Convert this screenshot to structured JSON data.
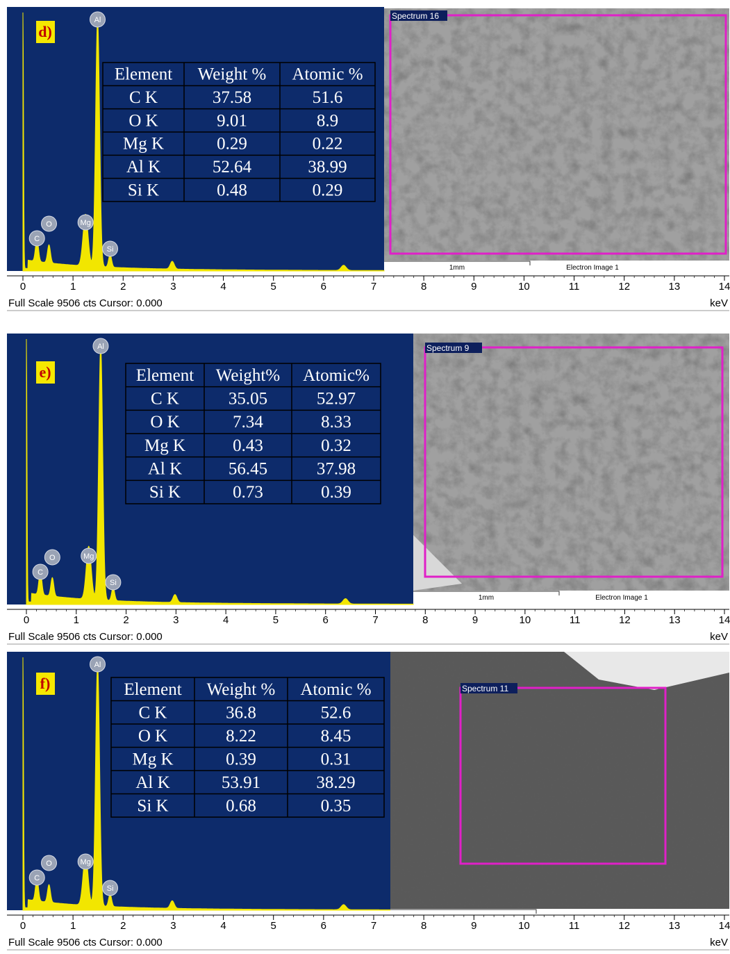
{
  "panels": [
    {
      "label": "d)",
      "peaks": [
        "C",
        "O",
        "Mg",
        "Al",
        "Si"
      ],
      "table": {
        "header": [
          "Element",
          "Weight %",
          "Atomic %"
        ],
        "rows": [
          [
            "C K",
            37.58,
            51.6
          ],
          [
            "O K",
            9.01,
            8.9
          ],
          [
            "Mg K",
            0.29,
            0.22
          ],
          [
            "Al K",
            52.64,
            38.99
          ],
          [
            "Si K",
            0.48,
            0.29
          ]
        ]
      },
      "image": {
        "spectrum": "Spectrum 16",
        "scale": "1mm",
        "caption": "Electron Image 1"
      },
      "axis": {
        "xlim": [
          0,
          14
        ],
        "xticks": [
          0,
          1,
          2,
          3,
          4,
          5,
          6,
          7,
          8,
          9,
          10,
          11,
          12,
          13,
          14
        ],
        "unit": "keV"
      },
      "footer": "Full Scale 9506 cts Cursor: 0.000"
    },
    {
      "label": "e)",
      "peaks": [
        "C",
        "O",
        "Mg",
        "Al",
        "Si"
      ],
      "table": {
        "header": [
          "Element",
          "Weight%",
          "Atomic%"
        ],
        "rows": [
          [
            "C K",
            35.05,
            52.97
          ],
          [
            "O K",
            7.34,
            8.33
          ],
          [
            "Mg K",
            0.43,
            0.32
          ],
          [
            "Al K",
            56.45,
            37.98
          ],
          [
            "Si K",
            0.73,
            0.39
          ]
        ]
      },
      "image": {
        "spectrum": "Spectrum 9",
        "scale": "1mm",
        "caption": "Electron Image 1"
      },
      "axis": {
        "xlim": [
          0,
          14
        ],
        "xticks": [
          0,
          1,
          2,
          3,
          4,
          5,
          6,
          7,
          8,
          9,
          10,
          11,
          12,
          13,
          14
        ],
        "unit": "keV"
      },
      "footer": "Full Scale 9506 cts Cursor: 0.000"
    },
    {
      "label": "f)",
      "peaks": [
        "C",
        "O",
        "Mg",
        "Al",
        "Si"
      ],
      "table": {
        "header": [
          "Element",
          "Weight %",
          "Atomic %"
        ],
        "rows": [
          [
            "C K",
            36.8,
            52.6
          ],
          [
            "O K",
            8.22,
            8.45
          ],
          [
            "Mg K",
            0.39,
            0.31
          ],
          [
            "Al K",
            53.91,
            38.29
          ],
          [
            "Si K",
            0.68,
            0.35
          ]
        ]
      },
      "image": {
        "spectrum": "Spectrum 11"
      },
      "axis": {
        "xlim": [
          0,
          14
        ],
        "xticks": [
          0,
          1,
          2,
          3,
          4,
          5,
          6,
          7,
          8,
          9,
          10,
          11,
          12,
          13,
          14
        ],
        "unit": "keV"
      },
      "footer": "Full Scale 9506 cts Cursor: 0.000"
    }
  ]
}
